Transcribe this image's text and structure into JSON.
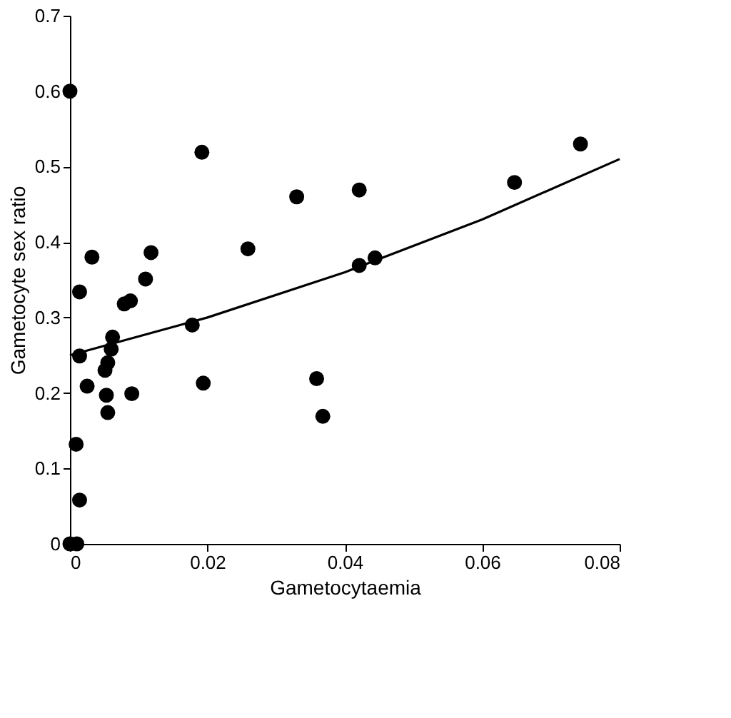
{
  "chart_data": {
    "type": "scatter",
    "xlabel": "Gametocytaemia",
    "ylabel": "Gametocyte sex ratio",
    "xlim": [
      0,
      0.08
    ],
    "xticks": [
      0,
      0.02,
      0.04,
      0.06,
      0.08
    ],
    "ylim": [
      0,
      0.7
    ],
    "yticks": [
      0,
      0.1,
      0.2,
      0.3,
      0.4,
      0.5,
      0.6,
      0.7
    ],
    "grid": false,
    "series": [
      {
        "marker": "circle",
        "color": "#000000",
        "x": [
          0,
          0,
          0.001,
          0.0009,
          0.0014,
          0.0014,
          0.0014,
          0.0025,
          0.0032,
          0.0051,
          0.0055,
          0.006,
          0.0062,
          0.0053,
          0.0055,
          0.0079,
          0.0088,
          0.009,
          0.011,
          0.0118,
          0.0178,
          0.0194,
          0.0192,
          0.0259,
          0.033,
          0.0421,
          0.0421,
          0.0444,
          0.0359,
          0.0368,
          0.0647,
          0.0743
        ],
        "values": [
          0.6,
          0,
          0,
          0.132,
          0.058,
          0.334,
          0.249,
          0.209,
          0.38,
          0.23,
          0.24,
          0.258,
          0.274,
          0.197,
          0.174,
          0.318,
          0.322,
          0.199,
          0.351,
          0.386,
          0.29,
          0.213,
          0.519,
          0.391,
          0.46,
          0.469,
          0.369,
          0.379,
          0.219,
          0.169,
          0.479,
          0.53
        ]
      },
      {
        "type": "line",
        "color": "#000000",
        "line_style": "solid",
        "marker": "none",
        "x": [
          0,
          0.02,
          0.04,
          0.06,
          0.08
        ],
        "values": [
          0.25,
          0.3,
          0.36,
          0.43,
          0.51
        ]
      }
    ]
  }
}
